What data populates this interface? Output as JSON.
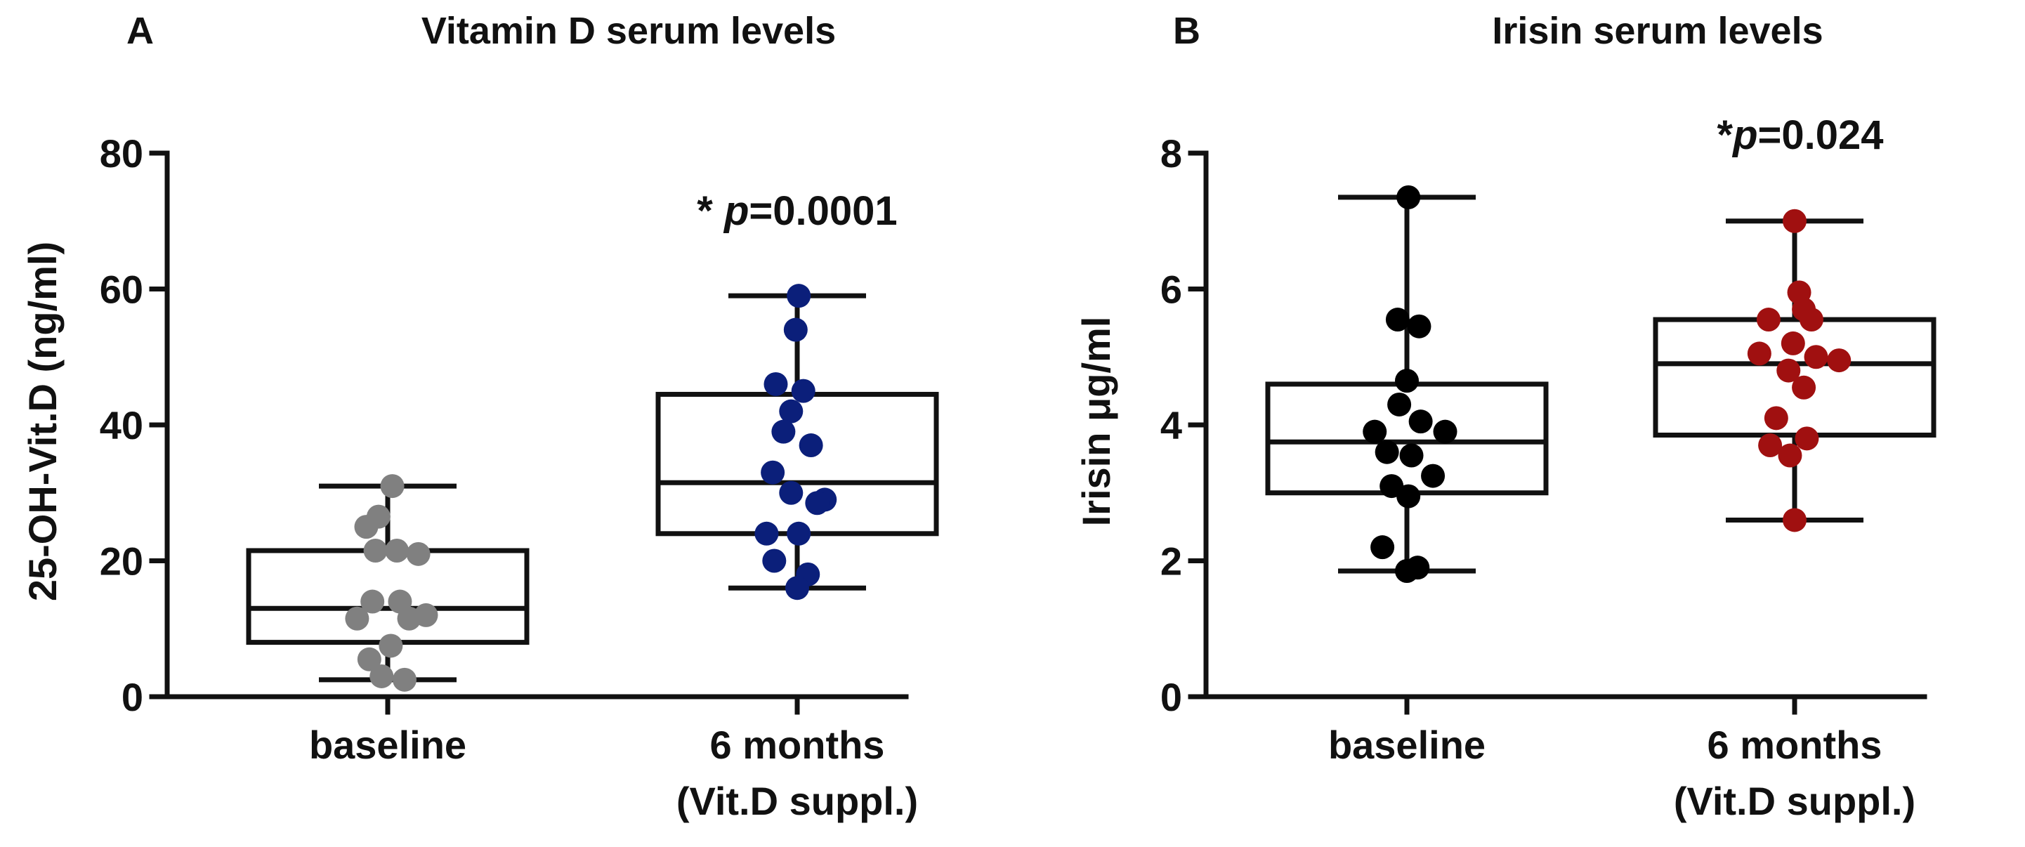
{
  "chart_data": [
    {
      "type": "boxplot",
      "panel": "A",
      "title": "Vitamin D serum levels",
      "ylabel": "25-OH-Vit.D (ng/ml)",
      "xlabel": "",
      "ylim": [
        0,
        80
      ],
      "yticks": [
        "0",
        "20",
        "40",
        "60",
        "80"
      ],
      "categories": [
        {
          "line1": "baseline",
          "line2": ""
        },
        {
          "line1": "6 months",
          "line2": "(Vit.D suppl.)"
        }
      ],
      "annotation": {
        "prefix": "* ",
        "p": "p",
        "value": "=0.0001"
      },
      "series": [
        {
          "name": "baseline",
          "color": "#808080",
          "box": {
            "min": 2.5,
            "q1": 8,
            "median": 13,
            "q3": 21.5,
            "max": 31
          },
          "points": [
            31,
            26.5,
            25,
            21.5,
            21.5,
            21,
            14,
            14,
            12,
            11.5,
            11.5,
            7.5,
            5.5,
            3,
            2.5
          ],
          "offsets": [
            0.03,
            -0.06,
            -0.14,
            -0.08,
            0.06,
            0.2,
            -0.1,
            0.08,
            0.25,
            -0.2,
            0.14,
            0.02,
            -0.12,
            -0.04,
            0.11
          ]
        },
        {
          "name": "6 months (Vit.D suppl.)",
          "color": "#0b1f7a",
          "box": {
            "min": 16,
            "q1": 24,
            "median": 31.5,
            "q3": 44.5,
            "max": 59
          },
          "points": [
            59,
            54,
            46,
            45,
            42,
            39,
            37,
            33,
            30,
            29,
            28.5,
            24,
            24,
            20,
            18,
            16
          ],
          "offsets": [
            0.01,
            -0.01,
            -0.14,
            0.04,
            -0.04,
            -0.09,
            0.09,
            -0.16,
            -0.04,
            0.18,
            0.13,
            -0.2,
            0.01,
            -0.15,
            0.07,
            -0.0
          ]
        }
      ]
    },
    {
      "type": "boxplot",
      "panel": "B",
      "title": "Irisin serum levels",
      "ylabel": "Irisin μg/ml",
      "xlabel": "",
      "ylim": [
        0,
        8
      ],
      "yticks": [
        "0",
        "2",
        "4",
        "6",
        "8"
      ],
      "categories": [
        {
          "line1": "baseline",
          "line2": ""
        },
        {
          "line1": "6 months",
          "line2": "(Vit.D suppl.)"
        }
      ],
      "annotation": {
        "prefix": "*",
        "p": "p",
        "value": "=0.024"
      },
      "series": [
        {
          "name": "baseline",
          "color": "#000000",
          "box": {
            "min": 1.85,
            "q1": 3.0,
            "median": 3.75,
            "q3": 4.6,
            "max": 7.35
          },
          "points": [
            7.35,
            5.55,
            5.45,
            4.65,
            4.3,
            4.05,
            3.9,
            3.9,
            3.6,
            3.55,
            3.25,
            3.1,
            2.95,
            2.2,
            1.9,
            1.85
          ],
          "offsets": [
            0.01,
            -0.06,
            0.08,
            0.0,
            -0.05,
            0.09,
            -0.21,
            0.25,
            -0.13,
            0.03,
            0.17,
            -0.1,
            0.01,
            -0.16,
            0.07,
            0.0
          ]
        },
        {
          "name": "6 months (Vit.D suppl.)",
          "color": "#a01010",
          "box": {
            "min": 2.6,
            "q1": 3.85,
            "median": 4.9,
            "q3": 5.55,
            "max": 7.0
          },
          "points": [
            7.0,
            5.95,
            5.7,
            5.55,
            5.55,
            5.2,
            5.05,
            5.0,
            4.95,
            4.8,
            4.55,
            4.1,
            3.8,
            3.7,
            3.55,
            2.6
          ],
          "offsets": [
            0.0,
            0.03,
            0.06,
            -0.17,
            0.11,
            -0.01,
            -0.23,
            0.14,
            0.29,
            -0.04,
            0.06,
            -0.12,
            0.08,
            -0.16,
            -0.03,
            0.0
          ]
        }
      ]
    }
  ]
}
